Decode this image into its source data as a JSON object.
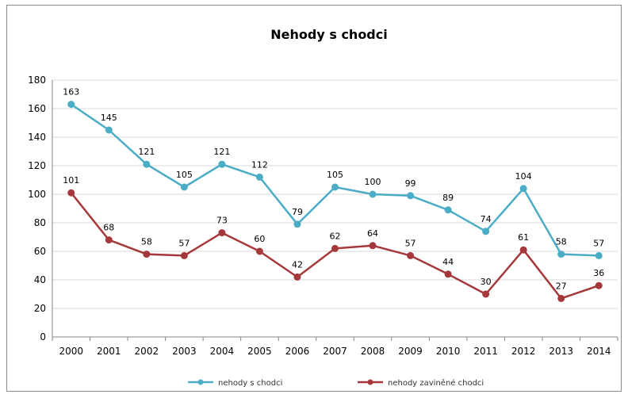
{
  "chart_data": {
    "type": "line",
    "title": "Nehody s chodci",
    "xlabel": "",
    "ylabel": "",
    "categories": [
      "2000",
      "2001",
      "2002",
      "2003",
      "2004",
      "2005",
      "2006",
      "2007",
      "2008",
      "2009",
      "2010",
      "2011",
      "2012",
      "2013",
      "2014"
    ],
    "ylim": [
      0,
      180
    ],
    "yticks": [
      0,
      20,
      40,
      60,
      80,
      100,
      120,
      140,
      160,
      180
    ],
    "grid": true,
    "legend_position": "bottom",
    "series": [
      {
        "name": "nehody s chodci",
        "color": "#4BACC6",
        "values": [
          163,
          145,
          121,
          105,
          121,
          112,
          79,
          105,
          100,
          99,
          89,
          74,
          104,
          58,
          57
        ]
      },
      {
        "name": "nehody zaviněné chodci",
        "color": "#A5383B",
        "values": [
          101,
          68,
          58,
          57,
          73,
          60,
          42,
          62,
          64,
          57,
          44,
          30,
          61,
          27,
          36
        ]
      }
    ]
  }
}
